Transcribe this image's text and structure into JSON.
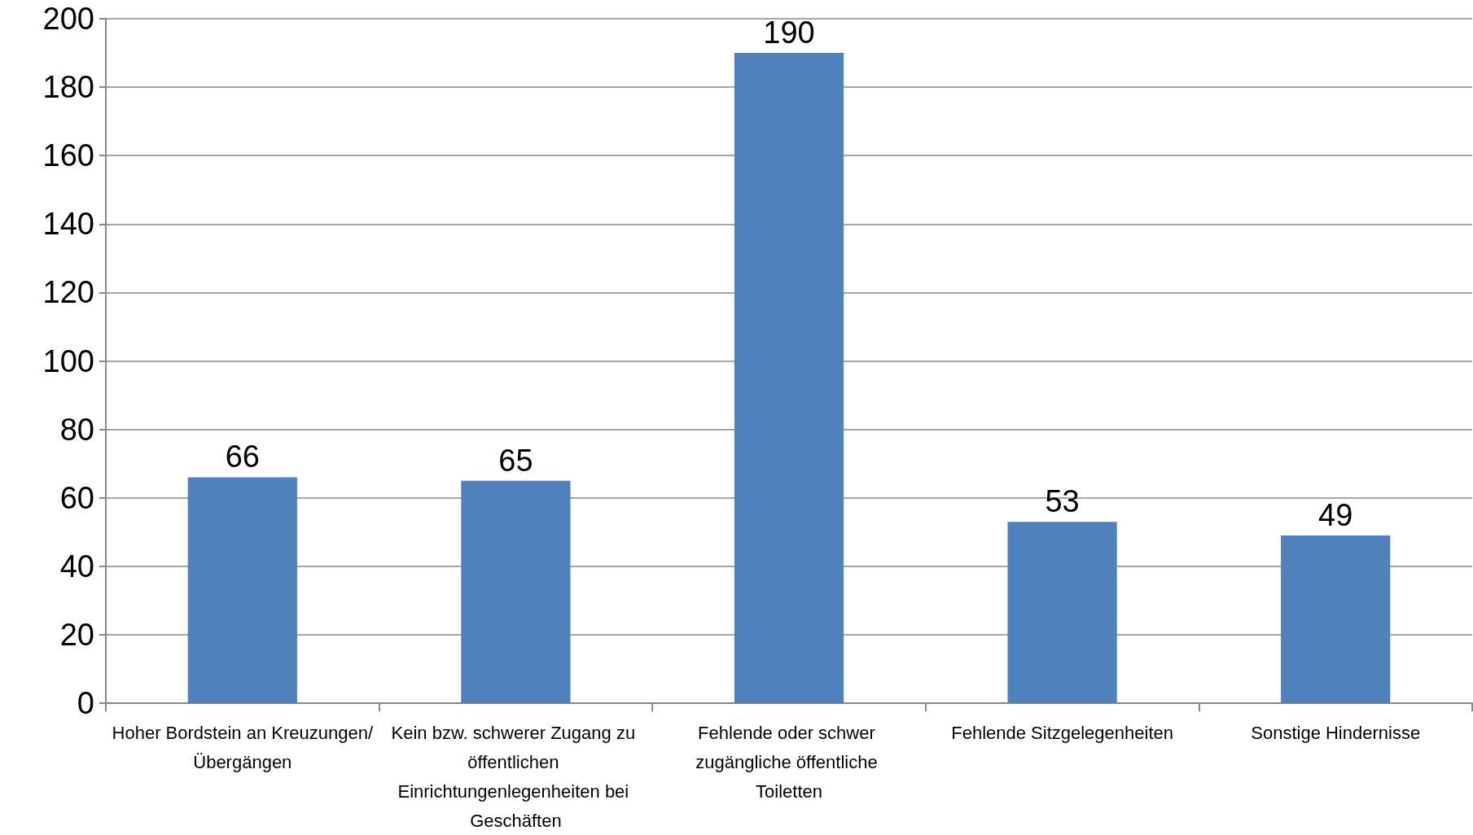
{
  "chart_data": {
    "type": "bar",
    "categories": [
      "Hoher Bordstein an Kreuzungen/Übergängen",
      "Kein bzw. schwerer Zugang zu öffentlichen Einrichtungenlegenheiten bei Geschäften",
      "Fehlende oder schwer zugängliche öffentliche Toiletten",
      "Fehlende Sitzgelegenheiten",
      "Sonstige Hindernisse"
    ],
    "values": [
      66,
      65,
      190,
      53,
      49
    ],
    "color": "#4f81bd",
    "ylim": [
      0,
      200
    ],
    "yticks": [
      0,
      20,
      40,
      60,
      80,
      100,
      120,
      140,
      160,
      180,
      200
    ],
    "grid": "y",
    "data_labels": true
  }
}
